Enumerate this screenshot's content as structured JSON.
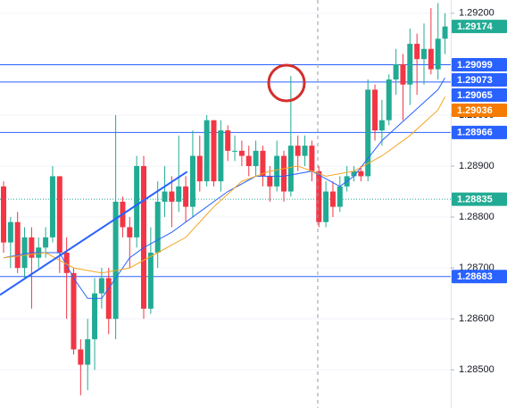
{
  "chart_data": {
    "type": "candlestick",
    "ylim": [
      1.28425,
      1.29226
    ],
    "yticks": [
      {
        "value": 1.292,
        "label": "1.29200"
      },
      {
        "value": 1.29,
        "label": "1.29000"
      },
      {
        "value": 1.289,
        "label": "1.28900"
      },
      {
        "value": 1.288,
        "label": "1.28800"
      },
      {
        "value": 1.287,
        "label": "1.28700"
      },
      {
        "value": 1.286,
        "label": "1.28600"
      },
      {
        "value": 1.285,
        "label": "1.28500"
      }
    ],
    "grid": true,
    "up_color": "#22ab94",
    "down_color": "#f23645",
    "open": [
      1.2886,
      1.2875,
      1.2879,
      1.287,
      1.2876,
      1.2872,
      1.2874,
      1.2876,
      1.2888,
      1.2873,
      1.2869,
      1.2854,
      1.2851,
      1.2856,
      1.2865,
      1.2868,
      1.286,
      1.2883,
      1.2878,
      1.2876,
      1.289,
      1.2862,
      1.2873,
      1.2883,
      1.2885,
      1.2883,
      1.2886,
      1.2882,
      1.2892,
      1.2887,
      1.2899,
      1.2887,
      1.2897,
      1.2893,
      1.2893,
      1.2892,
      1.289,
      1.2893,
      1.2888,
      1.2886,
      1.2892,
      1.2885,
      1.2894,
      1.2892,
      1.2894,
      1.2889,
      1.2879,
      1.2885,
      1.2882,
      1.2886,
      1.2888,
      1.2889,
      1.2888,
      1.2905,
      1.2897,
      1.2899,
      1.2907,
      1.291,
      1.2906,
      1.2914,
      1.2911,
      1.2913,
      1.2909,
      1.2915
    ],
    "high": [
      1.2887,
      1.288,
      1.2881,
      1.2878,
      1.2878,
      1.2876,
      1.2878,
      1.289,
      1.2888,
      1.2876,
      1.287,
      1.2856,
      1.286,
      1.2868,
      1.287,
      1.287,
      1.29,
      1.2884,
      1.288,
      1.2892,
      1.2892,
      1.2878,
      1.2887,
      1.289,
      1.2888,
      1.2896,
      1.2888,
      1.2897,
      1.2896,
      1.29,
      1.2899,
      1.2899,
      1.2898,
      1.2896,
      1.2895,
      1.2894,
      1.2895,
      1.2894,
      1.289,
      1.2895,
      1.2893,
      1.29077,
      1.2896,
      1.2896,
      1.2895,
      1.289,
      1.2887,
      1.2887,
      1.2888,
      1.289,
      1.289,
      1.289,
      1.2907,
      1.2906,
      1.2903,
      1.2908,
      1.2913,
      1.2912,
      1.2917,
      1.2916,
      1.2918,
      1.2921,
      1.2922,
      1.292
    ],
    "low": [
      1.2873,
      1.287,
      1.2869,
      1.2868,
      1.2862,
      1.287,
      1.2872,
      1.2875,
      1.2869,
      1.286,
      1.2853,
      1.2845,
      1.2846,
      1.285,
      1.2862,
      1.2857,
      1.2856,
      1.2876,
      1.287,
      1.2874,
      1.286,
      1.2861,
      1.287,
      1.288,
      1.2878,
      1.2881,
      1.2879,
      1.288,
      1.2885,
      1.2886,
      1.2886,
      1.2885,
      1.2891,
      1.2891,
      1.289,
      1.2888,
      1.2888,
      1.2886,
      1.2883,
      1.2885,
      1.2883,
      1.2884,
      1.2889,
      1.289,
      1.2887,
      1.2878,
      1.2878,
      1.288,
      1.2881,
      1.2885,
      1.2887,
      1.2887,
      1.2887,
      1.2895,
      1.2894,
      1.2898,
      1.2904,
      1.2899,
      1.2902,
      1.2904,
      1.2906,
      1.2908,
      1.2907,
      1.2912
    ],
    "close": [
      1.2875,
      1.2879,
      1.287,
      1.2876,
      1.2872,
      1.2874,
      1.2876,
      1.2888,
      1.2873,
      1.2869,
      1.2854,
      1.2851,
      1.2856,
      1.2865,
      1.2868,
      1.286,
      1.2883,
      1.2878,
      1.2876,
      1.289,
      1.2862,
      1.2873,
      1.2883,
      1.2885,
      1.2883,
      1.2886,
      1.2882,
      1.2892,
      1.2887,
      1.2899,
      1.2887,
      1.2897,
      1.2893,
      1.2893,
      1.2892,
      1.289,
      1.2893,
      1.2888,
      1.2886,
      1.2892,
      1.2885,
      1.2894,
      1.2892,
      1.2894,
      1.2889,
      1.2879,
      1.2885,
      1.2882,
      1.2886,
      1.2888,
      1.2889,
      1.2888,
      1.2905,
      1.2897,
      1.2899,
      1.2907,
      1.291,
      1.2906,
      1.2914,
      1.2911,
      1.2913,
      1.2909,
      1.2915,
      1.29174
    ],
    "lines": [
      {
        "color": "#2962ff",
        "x": [
          0,
          4,
          8,
          10,
          12,
          14,
          16,
          18,
          20,
          24,
          28,
          32,
          36,
          40,
          44,
          48,
          50,
          54,
          58,
          62,
          63
        ],
        "values": [
          1.2872,
          1.2873,
          1.2873,
          1.2868,
          1.2864,
          1.2864,
          1.2868,
          1.2872,
          1.2874,
          1.2877,
          1.2881,
          1.2885,
          1.2888,
          1.2888,
          1.2889,
          1.2886,
          1.2888,
          1.2895,
          1.29,
          1.2905,
          1.29073
        ]
      },
      {
        "color": "#f5a623",
        "x": [
          0,
          6,
          10,
          14,
          18,
          22,
          26,
          30,
          34,
          38,
          42,
          46,
          50,
          54,
          58,
          62,
          63
        ],
        "values": [
          1.2872,
          1.2873,
          1.287,
          1.2869,
          1.287,
          1.2873,
          1.2876,
          1.2882,
          1.2887,
          1.2889,
          1.289,
          1.2888,
          1.2889,
          1.2892,
          1.2896,
          1.2901,
          1.29036
        ]
      }
    ],
    "trendline": {
      "color": "#2962ff",
      "x": [
        -0.5,
        26.2
      ],
      "values": [
        1.28647,
        1.28889
      ]
    },
    "levels": [
      {
        "value": 1.29174,
        "label": "1.29174",
        "color": "#22ab94",
        "line": "none"
      },
      {
        "value": 1.29099,
        "label": "1.29099",
        "color": "#2962ff",
        "line": "solid"
      },
      {
        "value": 1.29073,
        "label": "1.29073",
        "color": "#2962ff",
        "line": "none"
      },
      {
        "value": 1.29065,
        "label": "1.29065",
        "color": "#2962ff",
        "line": "solid"
      },
      {
        "value": 1.29036,
        "label": "1.29036",
        "color": "#f57c00",
        "line": "none"
      },
      {
        "value": 1.28966,
        "label": "1.28966",
        "color": "#2962ff",
        "line": "solid"
      },
      {
        "value": 1.28835,
        "label": "1.28835",
        "color": "#22ab94",
        "line": "dotted"
      },
      {
        "value": 1.28683,
        "label": "1.28683",
        "color": "#2962ff",
        "line": "solid"
      }
    ]
  }
}
